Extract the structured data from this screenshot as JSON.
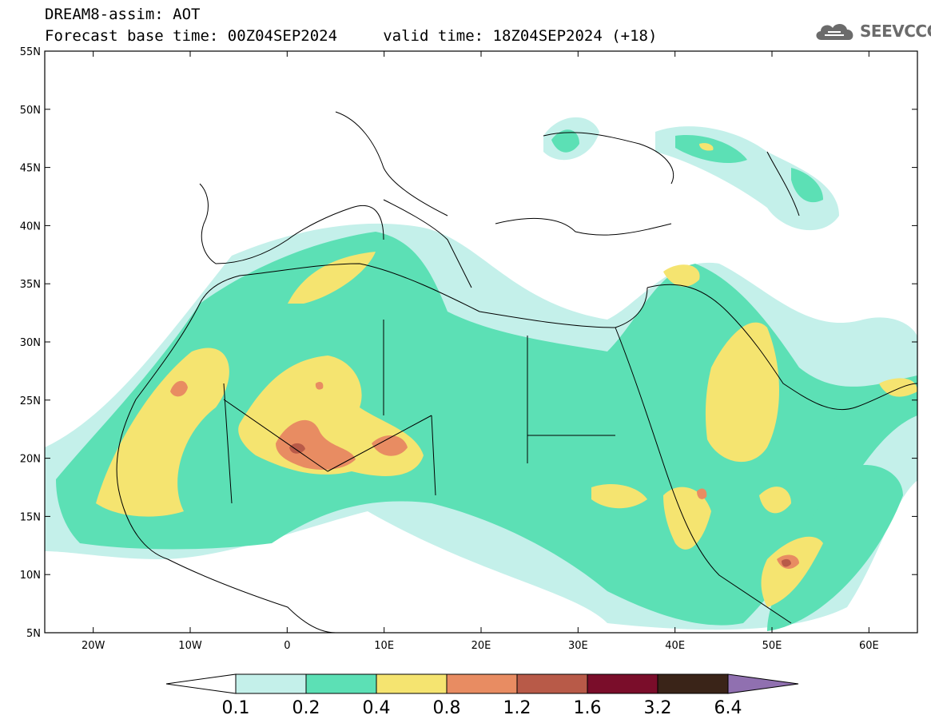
{
  "header": {
    "title_line1": "DREAM8-assim: AOT",
    "title_line2": "Forecast base time: 00Z04SEP2024     valid time: 18Z04SEP2024 (+18)"
  },
  "logo": {
    "text": "SEEVCCC",
    "icon": "cloud-icon"
  },
  "axes": {
    "lat_labels": [
      "55N",
      "50N",
      "45N",
      "40N",
      "35N",
      "30N",
      "25N",
      "20N",
      "15N",
      "10N",
      "5N"
    ],
    "lat_values": [
      55,
      50,
      45,
      40,
      35,
      30,
      25,
      20,
      15,
      10,
      5
    ],
    "lon_labels": [
      "20W",
      "10W",
      "0",
      "10E",
      "20E",
      "30E",
      "40E",
      "50E",
      "60E"
    ],
    "lon_values": [
      -20,
      -10,
      0,
      10,
      20,
      30,
      40,
      50,
      60
    ],
    "lon_range": [
      -25,
      65
    ],
    "lat_range": [
      5,
      55
    ]
  },
  "colorbar": {
    "labels": [
      "0.1",
      "0.2",
      "0.4",
      "0.8",
      "1.2",
      "1.6",
      "3.2",
      "6.4"
    ],
    "colors": [
      "#ffffff",
      "#c4f0ea",
      "#5ce0b5",
      "#f5e470",
      "#e88c62",
      "#b85a48",
      "#7a0d2a",
      "#3a2418",
      "#9070b0"
    ]
  },
  "colors": {
    "c1": "#c4f0ea",
    "c2": "#5ce0b5",
    "c3": "#f5e470",
    "c4": "#e88c62",
    "c5": "#b85a48"
  }
}
